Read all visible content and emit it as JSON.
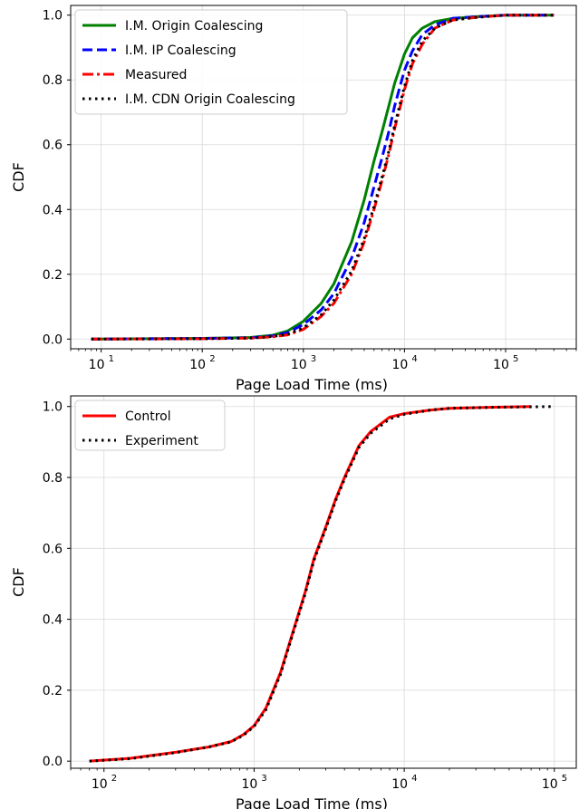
{
  "chart_data": [
    {
      "type": "line",
      "xlabel": "Page Load Time (ms)",
      "ylabel": "CDF",
      "xscale": "log",
      "xlim": [
        5,
        500000
      ],
      "ylim": [
        -0.03,
        1.03
      ],
      "x_ticks": [
        {
          "value": 10,
          "base": "10",
          "exp": "1"
        },
        {
          "value": 100,
          "base": "10",
          "exp": "2"
        },
        {
          "value": 1000,
          "base": "10",
          "exp": "3"
        },
        {
          "value": 10000,
          "base": "10",
          "exp": "4"
        },
        {
          "value": 100000,
          "base": "10",
          "exp": "5"
        }
      ],
      "y_ticks": [
        {
          "value": 0.0,
          "label": "0.0"
        },
        {
          "value": 0.2,
          "label": "0.2"
        },
        {
          "value": 0.4,
          "label": "0.4"
        },
        {
          "value": 0.6,
          "label": "0.6"
        },
        {
          "value": 0.8,
          "label": "0.8"
        },
        {
          "value": 1.0,
          "label": "1.0"
        }
      ],
      "grid": true,
      "legend_position": "top-left",
      "series": [
        {
          "name": "I.M. Origin Coalescing",
          "color": "#008000",
          "style": "solid",
          "x": [
            8,
            100,
            300,
            500,
            700,
            1000,
            1500,
            2000,
            3000,
            4000,
            5000,
            6000,
            7000,
            8000,
            10000,
            12000,
            15000,
            20000,
            30000,
            50000,
            100000,
            300000
          ],
          "y": [
            0.0,
            0.002,
            0.005,
            0.012,
            0.025,
            0.055,
            0.11,
            0.17,
            0.3,
            0.43,
            0.55,
            0.64,
            0.72,
            0.79,
            0.88,
            0.93,
            0.96,
            0.98,
            0.99,
            0.995,
            1.0,
            1.0
          ]
        },
        {
          "name": "I.M. IP Coalescing",
          "color": "#0000ff",
          "style": "dashed",
          "x": [
            8,
            100,
            300,
            500,
            700,
            1000,
            1500,
            2000,
            3000,
            4000,
            5000,
            6000,
            7000,
            8000,
            10000,
            12000,
            15000,
            20000,
            30000,
            50000,
            100000,
            300000
          ],
          "y": [
            0.0,
            0.002,
            0.004,
            0.01,
            0.02,
            0.045,
            0.09,
            0.14,
            0.25,
            0.36,
            0.47,
            0.56,
            0.64,
            0.72,
            0.83,
            0.89,
            0.94,
            0.97,
            0.99,
            0.995,
            1.0,
            1.0
          ]
        },
        {
          "name": "Measured",
          "color": "#ff0000",
          "style": "dashdot",
          "x": [
            8,
            100,
            300,
            500,
            700,
            1000,
            1500,
            2000,
            3000,
            4000,
            5000,
            6000,
            7000,
            8000,
            10000,
            12000,
            15000,
            20000,
            30000,
            50000,
            100000,
            300000
          ],
          "y": [
            0.0,
            0.001,
            0.003,
            0.007,
            0.013,
            0.03,
            0.07,
            0.11,
            0.2,
            0.3,
            0.4,
            0.49,
            0.57,
            0.65,
            0.77,
            0.85,
            0.91,
            0.96,
            0.985,
            0.993,
            1.0,
            1.0
          ]
        },
        {
          "name": "I.M. CDN Origin Coalescing",
          "color": "#000000",
          "style": "dotted",
          "x": [
            8,
            100,
            300,
            500,
            700,
            1000,
            1500,
            2000,
            3000,
            4000,
            5000,
            6000,
            7000,
            8000,
            10000,
            12000,
            15000,
            20000,
            30000,
            50000,
            100000,
            300000
          ],
          "y": [
            0.0,
            0.001,
            0.003,
            0.008,
            0.015,
            0.035,
            0.075,
            0.12,
            0.21,
            0.31,
            0.41,
            0.5,
            0.58,
            0.66,
            0.78,
            0.86,
            0.92,
            0.96,
            0.985,
            0.993,
            1.0,
            1.0
          ]
        }
      ]
    },
    {
      "type": "line",
      "xlabel": "Page Load Time (ms)",
      "ylabel": "CDF",
      "xscale": "log",
      "xlim": [
        60,
        140000
      ],
      "ylim": [
        -0.02,
        1.03
      ],
      "x_ticks": [
        {
          "value": 100,
          "base": "10",
          "exp": "2"
        },
        {
          "value": 1000,
          "base": "10",
          "exp": "3"
        },
        {
          "value": 10000,
          "base": "10",
          "exp": "4"
        },
        {
          "value": 100000,
          "base": "10",
          "exp": "5"
        }
      ],
      "y_ticks": [
        {
          "value": 0.0,
          "label": "0.0"
        },
        {
          "value": 0.2,
          "label": "0.2"
        },
        {
          "value": 0.4,
          "label": "0.4"
        },
        {
          "value": 0.6,
          "label": "0.6"
        },
        {
          "value": 0.8,
          "label": "0.8"
        },
        {
          "value": 1.0,
          "label": "1.0"
        }
      ],
      "grid": true,
      "legend_position": "top-left",
      "series": [
        {
          "name": "Control",
          "color": "#ff0000",
          "style": "solid",
          "x": [
            80,
            150,
            300,
            500,
            700,
            850,
            1000,
            1200,
            1500,
            1800,
            2200,
            2500,
            3000,
            3500,
            4000,
            5000,
            6000,
            8000,
            10000,
            15000,
            20000,
            40000,
            70000
          ],
          "y": [
            0.0,
            0.008,
            0.025,
            0.04,
            0.055,
            0.075,
            0.1,
            0.15,
            0.25,
            0.36,
            0.48,
            0.57,
            0.66,
            0.74,
            0.8,
            0.89,
            0.93,
            0.97,
            0.98,
            0.99,
            0.995,
            0.998,
            1.0
          ]
        },
        {
          "name": "Experiment",
          "color": "#000000",
          "style": "dotted",
          "x": [
            80,
            150,
            300,
            500,
            700,
            850,
            1000,
            1200,
            1500,
            1800,
            2200,
            2500,
            3000,
            3500,
            4000,
            5000,
            6000,
            8000,
            10000,
            15000,
            20000,
            40000,
            100000
          ],
          "y": [
            0.0,
            0.007,
            0.024,
            0.04,
            0.054,
            0.073,
            0.098,
            0.145,
            0.245,
            0.355,
            0.475,
            0.565,
            0.655,
            0.735,
            0.795,
            0.885,
            0.925,
            0.965,
            0.978,
            0.99,
            0.995,
            0.998,
            1.0
          ]
        }
      ]
    }
  ]
}
